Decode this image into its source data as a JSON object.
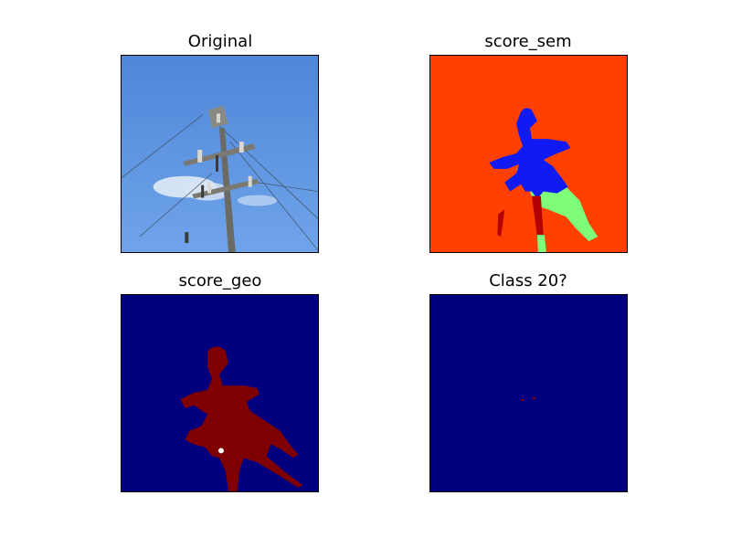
{
  "chart_data": [
    {
      "type": "image",
      "title": "Original",
      "description_color_sky": "#5b8fd6"
    },
    {
      "type": "heatmap",
      "title": "score_sem",
      "colors": {
        "background": "#ff4000",
        "pole": "#0f1af5",
        "foliage": "#7efc7a",
        "dark": "#b30000"
      }
    },
    {
      "type": "heatmap",
      "title": "score_geo",
      "colors": {
        "background": "#00007f",
        "pole": "#7f0000"
      }
    },
    {
      "type": "heatmap",
      "title": "Class 20?",
      "colors": {
        "background": "#00007f",
        "spot": "#8a0000"
      }
    }
  ]
}
